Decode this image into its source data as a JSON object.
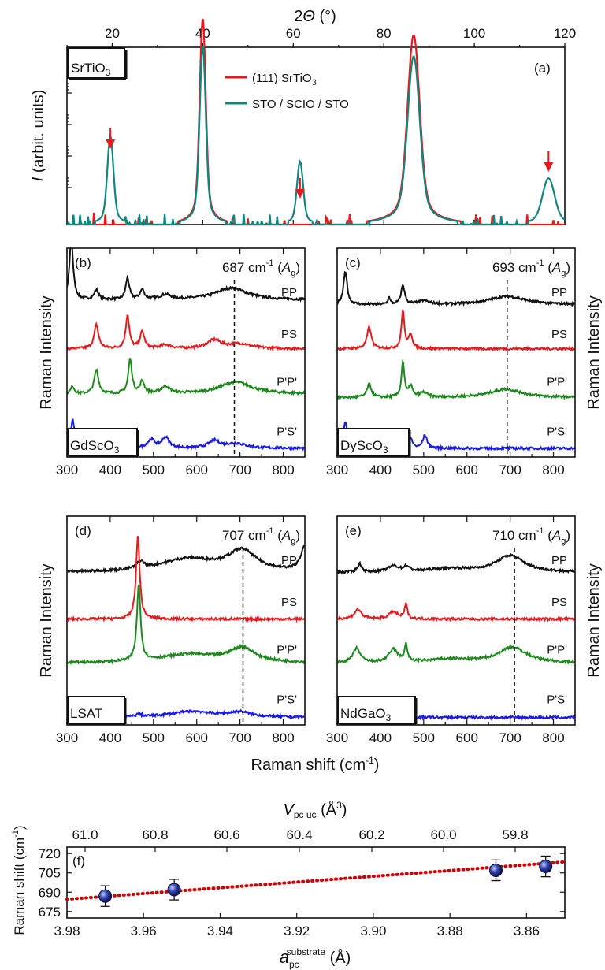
{
  "figure": {
    "top_axis_label": "2Θ (°)",
    "colors": {
      "red": "#e41a1c",
      "teal": "#12857f",
      "black": "#111111",
      "green": "#1e8a1e",
      "blue": "#1a1aee",
      "darkred": "#cc0000",
      "sphere": "#1f2f8a"
    }
  },
  "chart_data": [
    {
      "id": "a",
      "type": "line",
      "panel_label": "(a)",
      "substrate_label": "SrTiO3",
      "xlabel": "2Θ (°)",
      "ylabel": "I (arbit. units)",
      "xlim": [
        10,
        120
      ],
      "xticks": [
        20,
        40,
        60,
        80,
        100,
        120
      ],
      "yscale": "log",
      "legend": [
        {
          "label": "(111) SrTiO3",
          "color": "#e41a1c"
        },
        {
          "label": "STO / SCIO / STO",
          "color": "#12857f"
        }
      ],
      "series": [
        {
          "name": "(111) SrTiO3",
          "peaks": [
            {
              "x": 40,
              "height": 0.98
            },
            {
              "x": 86.6,
              "height": 0.9
            }
          ]
        },
        {
          "name": "STO / SCIO / STO",
          "peaks": [
            {
              "x": 19.6,
              "height": 0.42
            },
            {
              "x": 40,
              "height": 0.85
            },
            {
              "x": 61.5,
              "height": 0.3
            },
            {
              "x": 86.6,
              "height": 0.8
            },
            {
              "x": 116.4,
              "height": 0.22
            }
          ]
        }
      ],
      "arrows_at_x": [
        19.6,
        61.5,
        116.4
      ]
    },
    {
      "id": "b",
      "type": "line",
      "panel_label": "(b)",
      "substrate_label": "GdScO3",
      "mode_label": "687 cm-1 (Ag)",
      "mode_position": 687,
      "xlim": [
        300,
        850
      ],
      "xticks": [
        300,
        400,
        500,
        600,
        700,
        800
      ],
      "ylabel": "Raman Intensity",
      "series": [
        {
          "name": "PP",
          "baseline": 0.5,
          "peaks": [
            [
              310,
              2.6,
              5
            ],
            [
              368,
              0.4,
              6
            ],
            [
              440,
              0.9,
              5
            ],
            [
              474,
              0.4,
              6
            ],
            [
              528,
              0.2,
              15
            ],
            [
              680,
              0.5,
              45
            ]
          ]
        },
        {
          "name": "PS",
          "baseline": 0.2,
          "peaks": [
            [
              368,
              1.0,
              6
            ],
            [
              440,
              1.4,
              5
            ],
            [
              474,
              0.7,
              6
            ],
            [
              528,
              0.15,
              15
            ],
            [
              640,
              0.35,
              20
            ],
            [
              700,
              0.2,
              30
            ]
          ]
        },
        {
          "name": "P'P'",
          "baseline": 0.3,
          "peaks": [
            [
              313,
              0.3,
              5
            ],
            [
              368,
              1.0,
              6
            ],
            [
              446,
              1.45,
              5
            ],
            [
              474,
              0.5,
              6
            ],
            [
              528,
              0.3,
              12
            ],
            [
              690,
              0.5,
              45
            ]
          ]
        },
        {
          "name": "P'S'",
          "baseline": 0.1,
          "peaks": [
            [
              313,
              1.2,
              5
            ],
            [
              375,
              0.35,
              8
            ],
            [
              447,
              0.7,
              5
            ],
            [
              495,
              0.35,
              10
            ],
            [
              528,
              0.45,
              10
            ],
            [
              640,
              0.3,
              15
            ],
            [
              690,
              0.2,
              30
            ]
          ]
        }
      ]
    },
    {
      "id": "c",
      "type": "line",
      "panel_label": "(c)",
      "substrate_label": "DyScO3",
      "mode_label": "693 cm-1 (Ag)",
      "mode_position": 693,
      "xlim": [
        300,
        850
      ],
      "xticks": [
        300,
        400,
        500,
        600,
        700,
        800
      ],
      "ylabel": "Raman Intensity",
      "series": [
        {
          "name": "PP",
          "baseline": 0.3,
          "peaks": [
            [
              319,
              1.4,
              5
            ],
            [
              420,
              0.3,
              3
            ],
            [
              452,
              0.8,
              5
            ],
            [
              500,
              0.15,
              15
            ],
            [
              693,
              0.35,
              50
            ]
          ]
        },
        {
          "name": "PS",
          "baseline": 0.2,
          "peaks": [
            [
              374,
              0.9,
              6
            ],
            [
              452,
              1.6,
              4
            ],
            [
              470,
              0.6,
              5
            ]
          ]
        },
        {
          "name": "P'P'",
          "baseline": 0.15,
          "peaks": [
            [
              374,
              0.55,
              6
            ],
            [
              452,
              1.5,
              4
            ],
            [
              470,
              0.45,
              5
            ],
            [
              500,
              0.2,
              10
            ],
            [
              690,
              0.35,
              45
            ]
          ]
        },
        {
          "name": "P'S'",
          "baseline": 0.1,
          "peaks": [
            [
              319,
              1.1,
              5
            ],
            [
              452,
              0.6,
              4
            ],
            [
              470,
              0.4,
              5
            ],
            [
              503,
              0.55,
              6
            ]
          ]
        }
      ]
    },
    {
      "id": "d",
      "type": "line",
      "panel_label": "(d)",
      "substrate_label": "LSAT",
      "mode_label": "707 cm-1 (Ag)",
      "mode_position": 707,
      "xlim": [
        300,
        850
      ],
      "xticks": [
        300,
        400,
        500,
        600,
        700,
        800
      ],
      "ylabel": "Raman Intensity",
      "series": [
        {
          "name": "PP",
          "baseline": 0.3,
          "peaks": [
            [
              470,
              0.3,
              10
            ],
            [
              580,
              0.55,
              80
            ],
            [
              705,
              0.85,
              40
            ],
            [
              850,
              1.0,
              12
            ]
          ]
        },
        {
          "name": "PS",
          "baseline": 0.1,
          "peaks": [
            [
              464,
              3.5,
              5
            ]
          ]
        },
        {
          "name": "P'P'",
          "baseline": 0.25,
          "peaks": [
            [
              466,
              3.2,
              5
            ],
            [
              580,
              0.35,
              80
            ],
            [
              705,
              0.6,
              35
            ]
          ]
        },
        {
          "name": "P'S'",
          "baseline": 0.05,
          "peaks": [
            [
              466,
              0.12,
              6
            ],
            [
              590,
              0.25,
              60
            ],
            [
              700,
              0.2,
              30
            ]
          ]
        }
      ]
    },
    {
      "id": "e",
      "type": "line",
      "panel_label": "(e)",
      "substrate_label": "NdGaO3",
      "mode_label": "710 cm-1 (Ag)",
      "mode_position": 710,
      "xlim": [
        300,
        850
      ],
      "xticks": [
        300,
        400,
        500,
        600,
        700,
        800
      ],
      "ylabel": "Raman Intensity",
      "series": [
        {
          "name": "PP",
          "baseline": 0.3,
          "peaks": [
            [
              352,
              0.35,
              6
            ],
            [
              430,
              0.25,
              15
            ],
            [
              460,
              0.2,
              8
            ],
            [
              560,
              0.15,
              60
            ],
            [
              700,
              0.7,
              40
            ]
          ]
        },
        {
          "name": "PS",
          "baseline": 0.1,
          "peaks": [
            [
              348,
              0.4,
              10
            ],
            [
              430,
              0.3,
              12
            ],
            [
              459,
              0.6,
              4
            ]
          ]
        },
        {
          "name": "P'P'",
          "baseline": 0.25,
          "peaks": [
            [
              345,
              0.6,
              10
            ],
            [
              430,
              0.55,
              12
            ],
            [
              459,
              0.7,
              4
            ],
            [
              560,
              0.15,
              60
            ],
            [
              705,
              0.65,
              40
            ]
          ]
        },
        {
          "name": "P'S'",
          "baseline": 0.05,
          "peaks": [
            [
              348,
              0.2,
              5
            ],
            [
              428,
              0.55,
              8
            ]
          ]
        }
      ]
    },
    {
      "id": "f",
      "type": "scatter",
      "panel_label": "(f)",
      "xlabel": "a_pc^substrate (Å)",
      "top_xlabel": "V_pc uc (Å3)",
      "ylabel": "Raman shift (cm-1)",
      "xlim": [
        3.98,
        3.85
      ],
      "xticks": [
        3.98,
        3.96,
        3.94,
        3.92,
        3.9,
        3.88,
        3.86
      ],
      "top_xticks": [
        61.0,
        60.8,
        60.6,
        60.4,
        60.2,
        60.0,
        59.8
      ],
      "ylim": [
        670,
        725
      ],
      "yticks": [
        675,
        690,
        705,
        720
      ],
      "points": [
        {
          "x": 3.97,
          "y": 687,
          "err": 8
        },
        {
          "x": 3.952,
          "y": 692,
          "err": 8
        },
        {
          "x": 3.868,
          "y": 707,
          "err": 8
        },
        {
          "x": 3.855,
          "y": 710,
          "err": 8
        }
      ],
      "fit": {
        "x": [
          3.98,
          3.85
        ],
        "y": [
          684.5,
          713.5
        ]
      }
    }
  ],
  "shared": {
    "raman_xlabel": "Raman shift (cm-1)"
  }
}
